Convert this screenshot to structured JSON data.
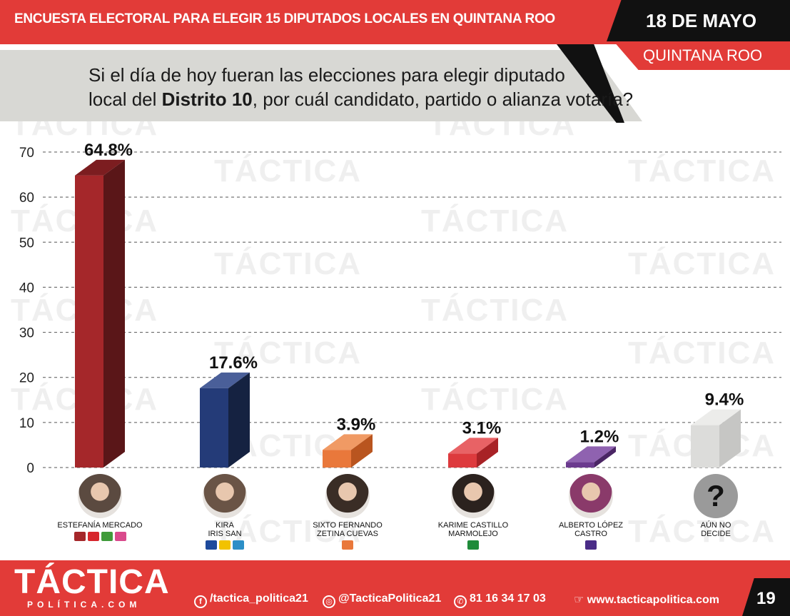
{
  "header": {
    "title": "ENCUESTA ELECTORAL PARA ELEGIR 15 DIPUTADOS LOCALES EN QUINTANA ROO",
    "date": "18 DE MAYO",
    "region": "QUINTANA ROO"
  },
  "question": {
    "line1": "Si el día de hoy fueran las elecciones para elegir diputado",
    "line2_pre": "local del ",
    "line2_bold": "Distrito 10",
    "line2_post": ", por cuál candidato, partido o alianza votaría?"
  },
  "watermark": "TÁCTICA",
  "chart_data": {
    "type": "bar",
    "categories": [
      "ESTEFANÍA MERCADO",
      "KIRA IRIS SAN",
      "SIXTO FERNANDO ZETINA CUEVAS",
      "KARIME CASTILLO MARMOLEJO",
      "ALBERTO LÓPEZ CASTRO",
      "AÚN NO DECIDE"
    ],
    "values": [
      64.8,
      17.6,
      3.9,
      3.1,
      1.2,
      9.4
    ],
    "data_labels": [
      "64.8%",
      "17.6%",
      "3.9%",
      "3.1%",
      "1.2%",
      "9.4%"
    ],
    "ylim": [
      0,
      70
    ],
    "yticks": [
      "0",
      "10",
      "20",
      "30",
      "40",
      "50",
      "60",
      "70"
    ],
    "grid": true,
    "colors": [
      {
        "front": "#a5272a",
        "side": "#5a1618",
        "top": "#7c1d20"
      },
      {
        "front": "#243b78",
        "side": "#152241",
        "top": "#4a5f99"
      },
      {
        "front": "#e9783b",
        "side": "#b9551f",
        "top": "#f09a64"
      },
      {
        "front": "#dd3a3d",
        "side": "#a82226",
        "top": "#e86265"
      },
      {
        "front": "#6b3a8e",
        "side": "#4a2564",
        "top": "#8f62b0"
      },
      {
        "front": "#dcdcda",
        "side": "#c6c6c4",
        "top": "#ececea"
      }
    ]
  },
  "candidates": [
    {
      "name": "ESTEFANÍA MERCADO",
      "avatar": "photo-1",
      "logos": [
        "#a5272a",
        "#d7262c",
        "#3f9b3a",
        "#d94a8c"
      ]
    },
    {
      "name": "KIRA\nIRIS SAN",
      "avatar": "photo-2",
      "logos": [
        "#1e4a9c",
        "#f2c200",
        "#2c8fc7"
      ]
    },
    {
      "name": "SIXTO FERNANDO\nZETINA CUEVAS",
      "avatar": "photo-3",
      "logos": [
        "#e9783b"
      ]
    },
    {
      "name": "KARIME CASTILLO\nMARMOLEJO",
      "avatar": "photo-4",
      "logos": [
        "#1f8b3a"
      ]
    },
    {
      "name": "ALBERTO LÓPEZ\nCASTRO",
      "avatar": "photo-5",
      "logos": [
        "#4a2c87"
      ]
    },
    {
      "name": "AÚN NO\nDECIDE",
      "avatar": "question-mark",
      "logos": []
    }
  ],
  "undecided_symbol": "?",
  "footer": {
    "brand": "TÁCTICA",
    "brand_sub": "POLÍTICA.COM",
    "facebook": "/tactica_politica21",
    "instagram": "@TacticaPolitica21",
    "phone": "81 16 34 17 03",
    "website": "www.tacticapolitica.com",
    "page": "19"
  }
}
